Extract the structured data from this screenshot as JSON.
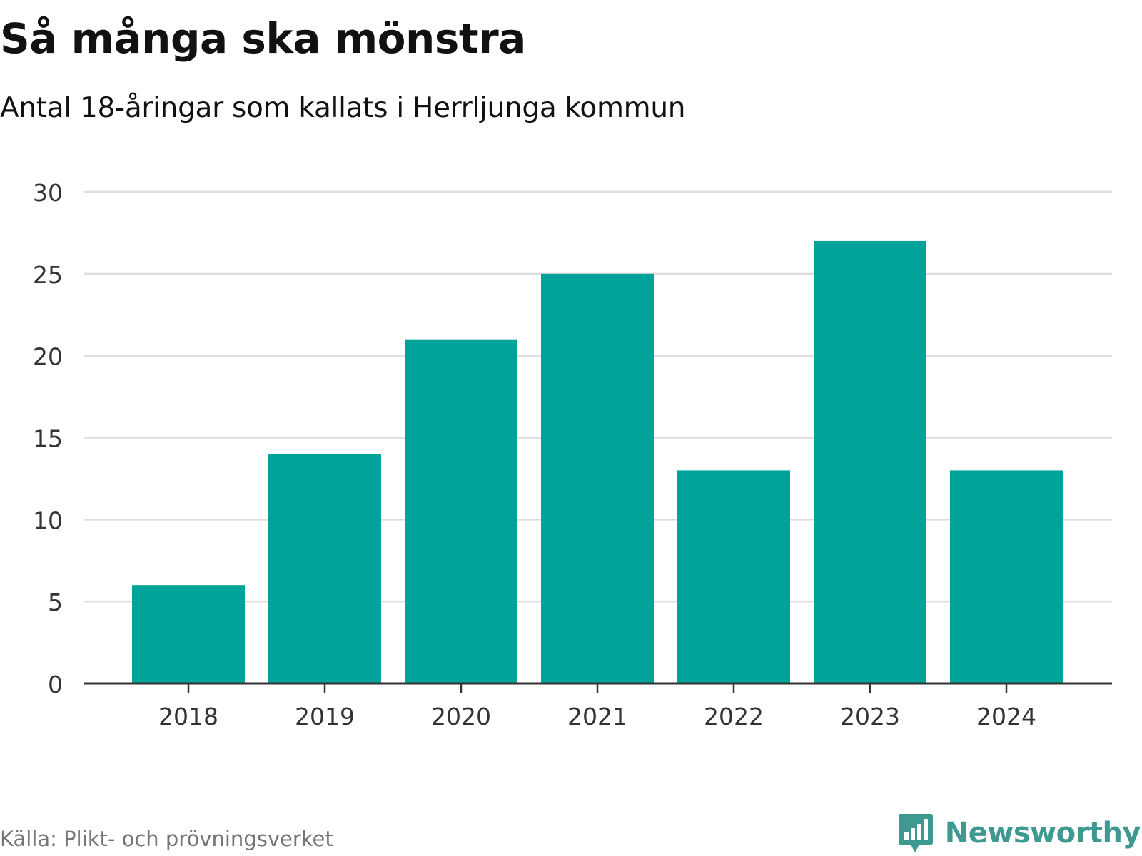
{
  "header": {
    "title": "Så många ska mönstra",
    "subtitle": "Antal 18-åringar som kallats i Herrljunga kommun"
  },
  "footer": {
    "source": "Källa: Plikt- och prövningsverket",
    "brand": "Newsworthy",
    "brand_icon": "chat-bubble-bar-chart-icon"
  },
  "colors": {
    "bar": "#00a39a",
    "grid": "#dddddd",
    "axis": "#333333",
    "tick_text": "#333333",
    "brand": "#3e9a90"
  },
  "chart_data": {
    "type": "bar",
    "title": "Så många ska mönstra",
    "subtitle": "Antal 18-åringar som kallats i Herrljunga kommun",
    "xlabel": "",
    "ylabel": "",
    "categories": [
      "2018",
      "2019",
      "2020",
      "2021",
      "2022",
      "2023",
      "2024"
    ],
    "values": [
      6,
      14,
      21,
      25,
      13,
      27,
      13
    ],
    "ylim": [
      0,
      30
    ],
    "yticks": [
      0,
      5,
      10,
      15,
      20,
      25,
      30
    ],
    "grid": true,
    "legend": "none"
  }
}
